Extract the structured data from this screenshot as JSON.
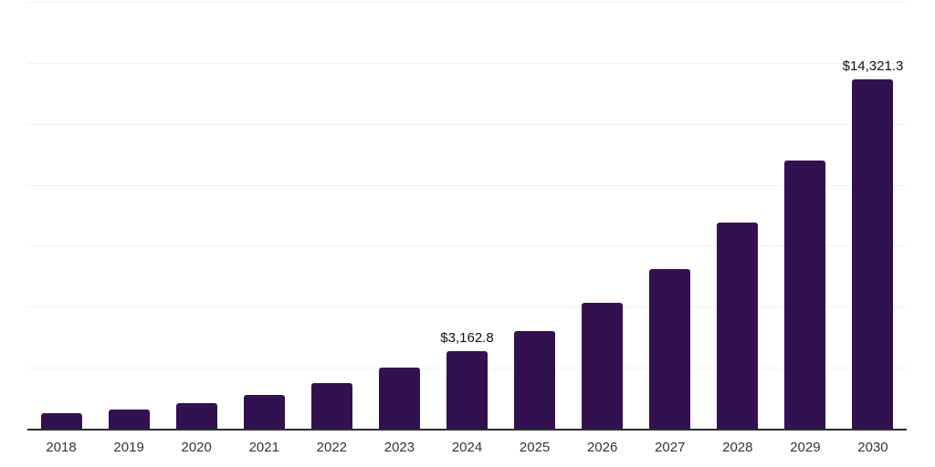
{
  "chart_data": {
    "type": "bar",
    "categories": [
      "2018",
      "2019",
      "2020",
      "2021",
      "2022",
      "2023",
      "2024",
      "2025",
      "2026",
      "2027",
      "2028",
      "2029",
      "2030"
    ],
    "values": [
      640,
      790,
      1050,
      1380,
      1870,
      2500,
      3162.8,
      4000,
      5160,
      6550,
      8450,
      11000,
      14321.3
    ],
    "value_labels": [
      "",
      "",
      "",
      "",
      "",
      "",
      "$3,162.8",
      "",
      "",
      "",
      "",
      "",
      "$14,321.3"
    ],
    "ylim": [
      0,
      17500
    ],
    "gridline_step": 2500,
    "grid": "horizontal",
    "legend_position": "none",
    "colors": {
      "bar": "#321150",
      "axis": "#2d2d2d",
      "gridline": "#f2f2f2",
      "tick_label": "#333333",
      "value_label": "#111111"
    }
  }
}
